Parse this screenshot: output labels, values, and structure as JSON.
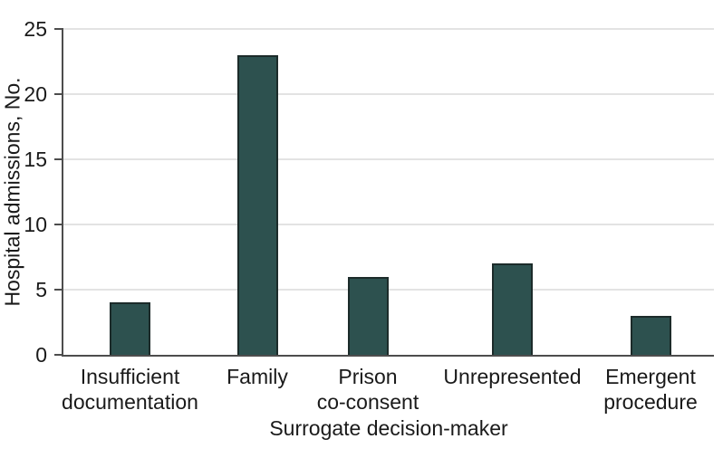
{
  "chart_data": {
    "type": "bar",
    "title": "",
    "categories": [
      "Insufficient documentation",
      "Family",
      "Prison co-consent",
      "Unrepresented",
      "Emergent procedure"
    ],
    "category_label_lines": [
      [
        "Insufficient",
        "documentation"
      ],
      [
        "Family"
      ],
      [
        "Prison",
        "co-consent"
      ],
      [
        "Unrepresented"
      ],
      [
        "Emergent",
        "procedure"
      ]
    ],
    "values": [
      4,
      23,
      6,
      7,
      3
    ],
    "xlabel": "Surrogate decision-maker",
    "ylabel": "Hospital admissions, No.",
    "ylim": [
      0,
      25
    ],
    "yticks": [
      0,
      5,
      10,
      15,
      20,
      25
    ],
    "grid": true,
    "legend": "none",
    "colors": {
      "bar_fill": "#2d514f",
      "bar_stroke": "#1c2b2a",
      "gridline": "#e3e3e3",
      "axis_line": "#4d4d4d",
      "text": "#1a1a1a",
      "background": "#ffffff"
    }
  }
}
